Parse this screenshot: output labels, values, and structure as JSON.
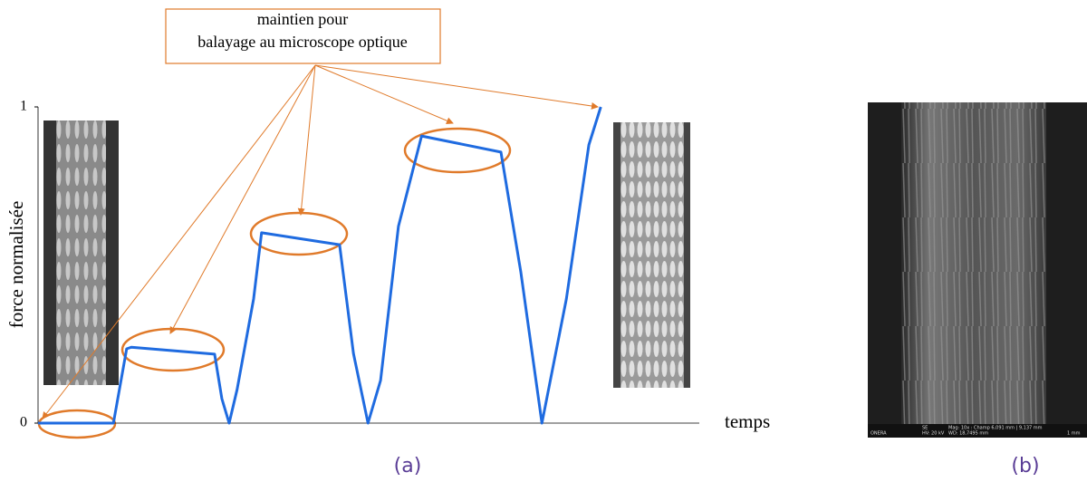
{
  "chart_data": {
    "type": "line",
    "x": [
      0,
      11.4,
      13.4,
      14.1,
      26.7,
      27.8,
      28.9,
      30.1,
      32.6,
      33.8,
      45.6,
      47.7,
      49.9,
      51.8,
      54.5,
      58,
      70,
      73,
      76.2,
      79.9,
      83.3,
      85.1
    ],
    "values": [
      0,
      0,
      0.235,
      0.24,
      0.218,
      0.077,
      0,
      0.106,
      0.393,
      0.602,
      0.564,
      0.22,
      0,
      0.135,
      0.622,
      0.908,
      0.857,
      0.479,
      0,
      0.393,
      0.88,
      1
    ],
    "color": "#1f6be0",
    "xlim": [
      0,
      100
    ],
    "ylim": [
      0,
      1
    ],
    "yticks": [
      0,
      1
    ],
    "x_label": "temps",
    "y_label": "force normalisée",
    "annotation_lines": [
      "maintien pour",
      "balayage au microscope optique"
    ],
    "panel_labels": [
      "(a)",
      "(b)"
    ],
    "sem_labels": [
      "ONERA",
      "SE",
      "HV: 20 kV",
      "Mag: 10x : Champ 6,091 mm | 9,137 mm",
      "WD: 18,7495 mm",
      "1 mm"
    ]
  }
}
